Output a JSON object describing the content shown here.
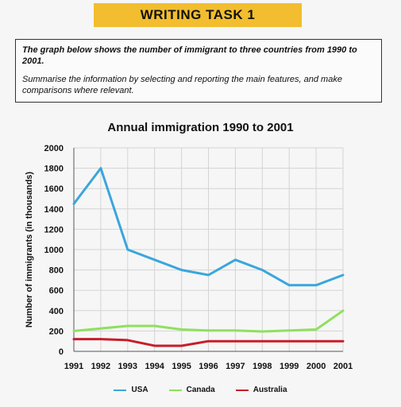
{
  "banner": {
    "label": "WRITING TASK 1"
  },
  "task": {
    "prompt": "The graph below shows the number of immigrant to three countries from 1990 to 2001.",
    "instructions": "Summarise the information by selecting and reporting the main features, and make comparisons where relevant."
  },
  "chart_data": {
    "type": "line",
    "title": "Annual immigration 1990 to 2001",
    "xlabel": "",
    "ylabel": "Number of immigrants (in thousands)",
    "x": [
      "1991",
      "1992",
      "1993",
      "1994",
      "1995",
      "1996",
      "1997",
      "1998",
      "1999",
      "2000",
      "2001"
    ],
    "ylim": [
      0,
      2000
    ],
    "yticks": [
      0,
      200,
      400,
      600,
      800,
      1000,
      1200,
      1400,
      1600,
      1800,
      2000
    ],
    "grid": true,
    "legend_position": "bottom",
    "series": [
      {
        "name": "USA",
        "color": "#3aa6dc",
        "values": [
          1450,
          1800,
          1000,
          900,
          800,
          750,
          900,
          800,
          650,
          650,
          750
        ]
      },
      {
        "name": "Canada",
        "color": "#8fe05f",
        "values": [
          200,
          225,
          250,
          250,
          215,
          205,
          205,
          195,
          205,
          215,
          400
        ]
      },
      {
        "name": "Australia",
        "color": "#c61e2a",
        "values": [
          120,
          120,
          110,
          55,
          55,
          100,
          100,
          100,
          100,
          100,
          100
        ]
      }
    ]
  }
}
